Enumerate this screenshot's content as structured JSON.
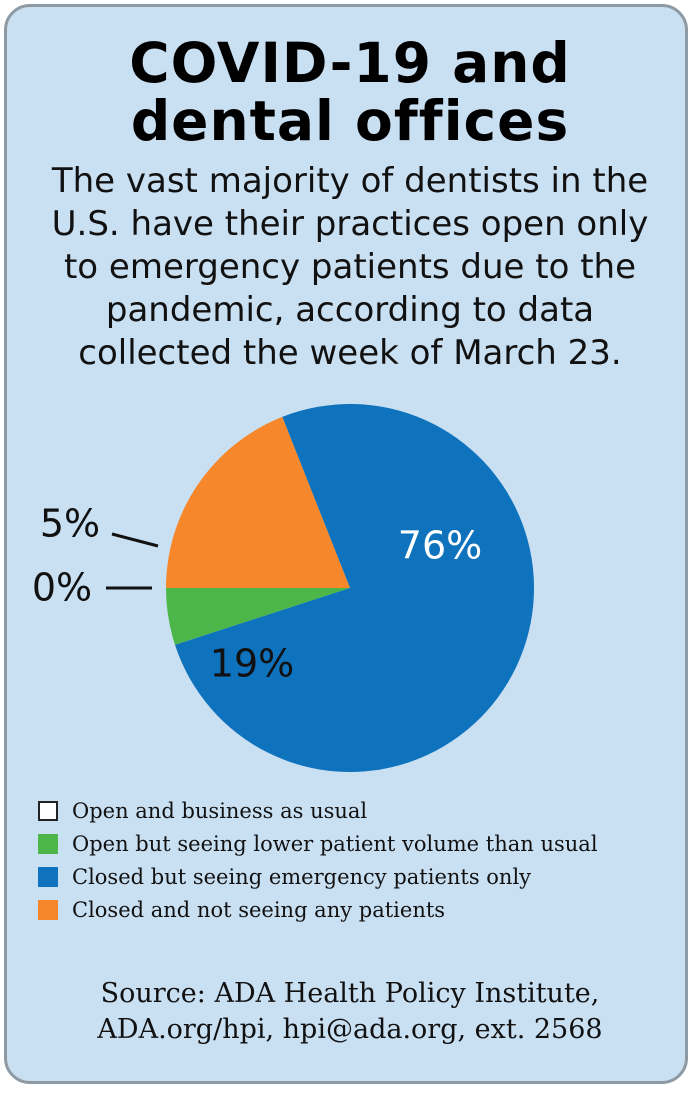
{
  "title_lines": [
    "COVID-19 and",
    "dental offices"
  ],
  "subtitle_lines": [
    "The vast majority of dentists in the",
    "U.S. have their practices open only",
    "to emergency patients due to the",
    "pandemic, according to data",
    "collected the week of March 23."
  ],
  "source_lines": [
    "Source: ADA Health Policy Institute,",
    "ADA.org/hpi, hpi@ada.org, ext. 2568"
  ],
  "chart_data": {
    "type": "pie",
    "title": "COVID-19 and dental offices",
    "start_angle_deg": 270,
    "direction": "counterclockwise",
    "slices": [
      {
        "label": "Open and business as usual",
        "value": 0,
        "value_label": "0%",
        "color": "#ffffff",
        "border_color": "#222222",
        "label_position": "outside"
      },
      {
        "label": "Open but seeing lower patient volume than usual",
        "value": 5,
        "value_label": "5%",
        "color": "#4cb748",
        "label_position": "outside"
      },
      {
        "label": "Closed but seeing emergency patients only",
        "value": 76,
        "value_label": "76%",
        "color": "#0e72bd",
        "label_position": "inside"
      },
      {
        "label": "Closed and not seeing any patients",
        "value": 19,
        "value_label": "19%",
        "color": "#f6882b",
        "label_position": "inside"
      }
    ],
    "legend_placement": "bottom"
  }
}
